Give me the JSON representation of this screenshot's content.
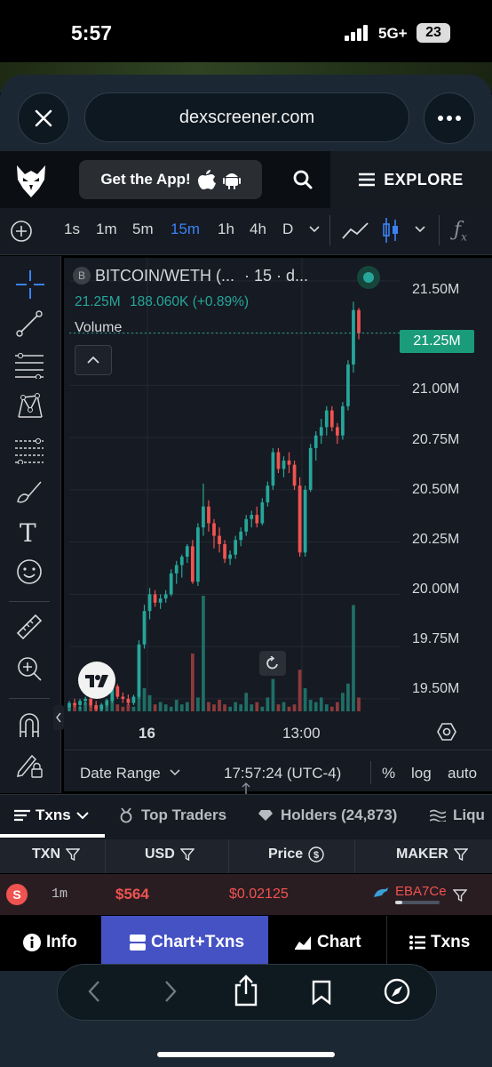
{
  "status_bar": {
    "time": "5:57",
    "network": "5G+",
    "battery": "23"
  },
  "browser": {
    "url": "dexscreener.com"
  },
  "header": {
    "get_app": "Get the App!",
    "explore": "EXPLORE"
  },
  "timeframes": [
    "1s",
    "1m",
    "5m",
    "15m",
    "1h",
    "4h",
    "D"
  ],
  "active_timeframe": "15m",
  "chart_header": {
    "pair": "BITCOIN/WETH (...",
    "interval": "· 15 · d...",
    "badge": "B",
    "ohlc_close": "21.25M",
    "ohlc_change": "188.060K (+0.89%)",
    "volume_label": "Volume",
    "price_tag": "21.25M"
  },
  "chart_data": {
    "type": "candlestick",
    "title": "BITCOIN/WETH",
    "y_tick_labels": [
      "21.50M",
      "21.25M",
      "21.00M",
      "20.75M",
      "20.50M",
      "20.25M",
      "20.00M",
      "19.75M",
      "19.50M"
    ],
    "x_tick_labels": [
      "16",
      "13:00"
    ],
    "ylim": [
      19.44,
      21.61
    ],
    "last_price": 21.25,
    "candles": [
      [
        19.46,
        19.49,
        19.44,
        19.48
      ],
      [
        19.48,
        19.5,
        19.46,
        19.47
      ],
      [
        19.47,
        19.5,
        19.45,
        19.49
      ],
      [
        19.49,
        19.51,
        19.47,
        19.5
      ],
      [
        19.5,
        19.52,
        19.46,
        19.47
      ],
      [
        19.47,
        19.49,
        19.44,
        19.45
      ],
      [
        19.45,
        19.48,
        19.44,
        19.47
      ],
      [
        19.47,
        19.5,
        19.46,
        19.49
      ],
      [
        19.49,
        19.58,
        19.48,
        19.56
      ],
      [
        19.56,
        19.57,
        19.5,
        19.51
      ],
      [
        19.51,
        19.53,
        19.48,
        19.5
      ],
      [
        19.5,
        19.52,
        19.47,
        19.48
      ],
      [
        19.48,
        19.52,
        19.47,
        19.51
      ],
      [
        19.51,
        19.78,
        19.5,
        19.76
      ],
      [
        19.76,
        19.95,
        19.74,
        19.92
      ],
      [
        19.92,
        20.03,
        19.88,
        20.0
      ],
      [
        20.0,
        20.02,
        19.94,
        19.96
      ],
      [
        19.96,
        20.0,
        19.93,
        19.98
      ],
      [
        19.98,
        20.02,
        19.96,
        20.0
      ],
      [
        20.0,
        20.12,
        19.99,
        20.1
      ],
      [
        20.1,
        20.16,
        20.05,
        20.14
      ],
      [
        20.14,
        20.19,
        20.08,
        20.18
      ],
      [
        20.18,
        20.24,
        20.15,
        20.23
      ],
      [
        20.23,
        20.26,
        20.05,
        20.06
      ],
      [
        20.06,
        20.34,
        20.04,
        20.32
      ],
      [
        20.32,
        20.53,
        20.28,
        20.42
      ],
      [
        20.42,
        20.45,
        20.3,
        20.34
      ],
      [
        20.34,
        20.36,
        20.22,
        20.28
      ],
      [
        20.28,
        20.32,
        20.2,
        20.24
      ],
      [
        20.24,
        20.26,
        20.15,
        20.17
      ],
      [
        20.17,
        20.21,
        20.14,
        20.19
      ],
      [
        20.19,
        20.28,
        20.17,
        20.26
      ],
      [
        20.26,
        20.32,
        20.23,
        20.3
      ],
      [
        20.3,
        20.38,
        20.28,
        20.36
      ],
      [
        20.36,
        20.4,
        20.32,
        20.38
      ],
      [
        20.38,
        20.42,
        20.32,
        20.34
      ],
      [
        20.34,
        20.46,
        20.33,
        20.44
      ],
      [
        20.44,
        20.54,
        20.42,
        20.52
      ],
      [
        20.52,
        20.7,
        20.5,
        20.68
      ],
      [
        20.68,
        20.7,
        20.58,
        20.6
      ],
      [
        20.6,
        20.66,
        20.56,
        20.64
      ],
      [
        20.64,
        20.68,
        20.58,
        20.62
      ],
      [
        20.62,
        20.64,
        20.5,
        20.52
      ],
      [
        20.52,
        20.56,
        20.18,
        20.2
      ],
      [
        20.2,
        20.52,
        20.18,
        20.5
      ],
      [
        20.5,
        20.72,
        20.49,
        20.7
      ],
      [
        20.7,
        20.78,
        20.64,
        20.76
      ],
      [
        20.76,
        20.84,
        20.72,
        20.8
      ],
      [
        20.8,
        20.9,
        20.76,
        20.88
      ],
      [
        20.88,
        20.9,
        20.78,
        20.8
      ],
      [
        20.8,
        20.82,
        20.72,
        20.76
      ],
      [
        20.76,
        20.92,
        20.74,
        20.9
      ],
      [
        20.9,
        21.12,
        20.88,
        21.1
      ],
      [
        21.1,
        21.4,
        21.06,
        21.36
      ],
      [
        21.36,
        21.37,
        21.22,
        21.25
      ]
    ],
    "volumes": [
      2,
      3,
      2,
      4,
      3,
      2,
      3,
      5,
      6,
      3,
      2,
      3,
      2,
      27,
      10,
      7,
      3,
      4,
      3,
      2,
      5,
      3,
      4,
      25,
      6,
      50,
      4,
      3,
      5,
      3,
      2,
      4,
      3,
      8,
      3,
      4,
      2,
      6,
      14,
      3,
      4,
      2,
      3,
      18,
      10,
      5,
      4,
      6,
      3,
      2,
      4,
      8,
      12,
      46,
      6
    ]
  },
  "chart_footer": {
    "date_range": "Date Range",
    "time": "17:57:24 (UTC-4)",
    "pct": "%",
    "log": "log",
    "auto": "auto"
  },
  "tabs": {
    "txns": "Txns",
    "top_traders": "Top Traders",
    "holders": "Holders (24,873)",
    "liquidity": "Liqu"
  },
  "table": {
    "headers": [
      "TXN",
      "USD",
      "Price",
      "MAKER"
    ],
    "row": {
      "type": "S",
      "age": "1m",
      "usd": "$564",
      "price": "$0.02125",
      "maker": "EBA7Ce"
    }
  },
  "bottom_nav": {
    "info": "Info",
    "chart_txns": "Chart+Txns",
    "chart": "Chart",
    "txns": "Txns"
  },
  "colors": {
    "up": "#26a69a",
    "down": "#ef5350",
    "accent": "#4552c4",
    "price_tag": "#1a9c7a"
  }
}
